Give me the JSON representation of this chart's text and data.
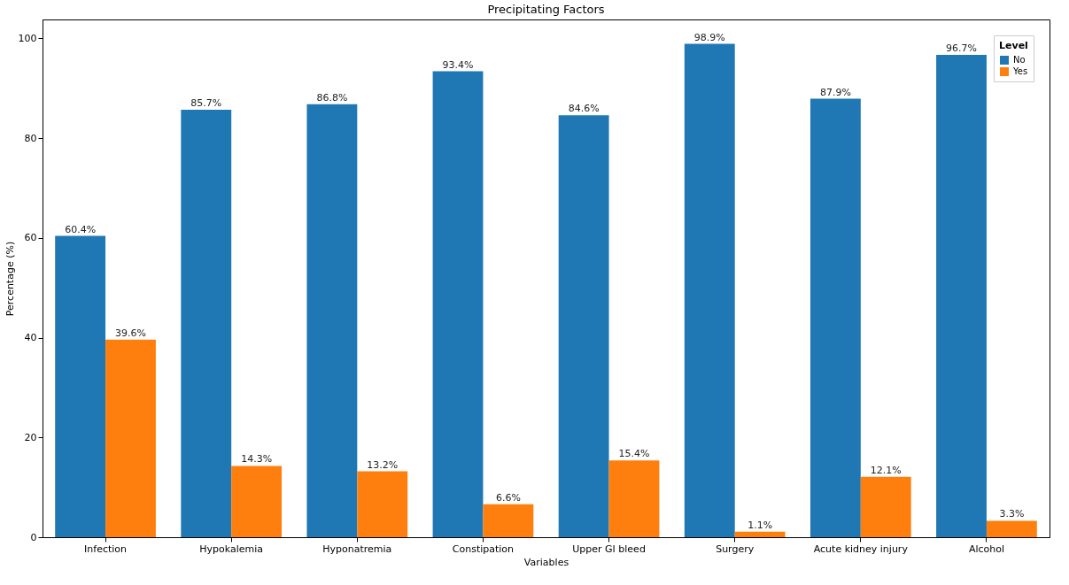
{
  "chart_data": {
    "type": "bar",
    "title": "Precipitating Factors",
    "xlabel": "Variables",
    "ylabel": "Percentage (%)",
    "legend_title": "Level",
    "categories": [
      "Infection",
      "Hypokalemia",
      "Hyponatremia",
      "Constipation",
      "Upper GI bleed",
      "Surgery",
      "Acute kidney injury",
      "Alcohol"
    ],
    "series": [
      {
        "name": "No",
        "color": "#1f77b4",
        "values": [
          60.4,
          85.7,
          86.8,
          93.4,
          84.6,
          98.9,
          87.9,
          96.7
        ],
        "value_labels": [
          "60.4%",
          "85.7%",
          "86.8%",
          "93.4%",
          "84.6%",
          "98.9%",
          "87.9%",
          "96.7%"
        ]
      },
      {
        "name": "Yes",
        "color": "#ff7f0e",
        "values": [
          39.6,
          14.3,
          13.2,
          6.6,
          15.4,
          1.1,
          12.1,
          3.3
        ],
        "value_labels": [
          "39.6%",
          "14.3%",
          "13.2%",
          "6.6%",
          "15.4%",
          "1.1%",
          "12.1%",
          "3.3%"
        ]
      }
    ],
    "ylim": [
      0,
      103.8
    ],
    "yticks": [
      0,
      20,
      40,
      60,
      80,
      100
    ],
    "grid": false,
    "legend": "top right"
  }
}
